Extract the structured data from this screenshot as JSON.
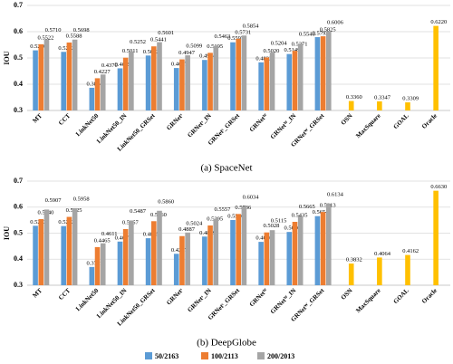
{
  "chart_data": [
    {
      "type": "bar",
      "subtitle": "(a) SpaceNet",
      "y_label": "IOU",
      "categories": [
        "MT",
        "CCT",
        "LinkNet50",
        "LinkNet50_IN",
        "LinkNet50_GRSet",
        "GRNetˢ",
        "GRNetˢ_IN",
        "GRNetˢ_GRSet",
        "GRNetᵂ",
        "GRNetᵂ_IN",
        "GRNetᵂ_GRSet",
        "OSN",
        "MaxSquare",
        "GOAL",
        "Oracle"
      ],
      "ylim": [
        0.3,
        0.7
      ],
      "yticks": [
        0.3,
        0.4,
        0.5,
        0.6,
        0.7
      ],
      "grid": true,
      "series": [
        {
          "name": "50/2163",
          "color": "#5b9bd5",
          "values": [
            0.529,
            0.5232,
            0.3864,
            0.4605,
            0.5092,
            0.4617,
            0.4924,
            0.5597,
            0.4832,
            0.5149,
            0.5792,
            null,
            null,
            null,
            null
          ],
          "value_labels": [
            "0.5290",
            "0.5232",
            "0.3864",
            "0.4605",
            "0.5092",
            "0.4617",
            "0.4924",
            "0.5597",
            "0.4832",
            "0.5149",
            "0.5792",
            null,
            null,
            null,
            null
          ]
        },
        {
          "name": "100/2113",
          "color": "#ed7d31",
          "values": [
            0.5522,
            0.5588,
            0.4227,
            0.5011,
            0.5441,
            0.4947,
            0.5195,
            0.5731,
            0.502,
            0.5271,
            0.5825,
            null,
            null,
            null,
            null
          ],
          "value_labels": [
            "0.5522",
            "0.5588",
            "0.4227",
            "0.5011",
            "0.5441",
            "0.4947",
            "0.5195",
            "0.5731",
            "0.5020",
            "0.5271",
            "0.5825",
            null,
            null,
            null,
            null
          ]
        },
        {
          "name": "200/2013",
          "color": "#a5a5a5",
          "values": [
            0.571,
            0.5698,
            0.437,
            0.5252,
            0.5601,
            0.5099,
            0.5463,
            0.5854,
            0.5204,
            0.5546,
            0.6006,
            null,
            null,
            null,
            null
          ],
          "value_labels": [
            "0.5710",
            "0.5698",
            "0.4370",
            "0.5252",
            "0.5601",
            "0.5099",
            "0.5463",
            "0.5854",
            "0.5204",
            "0.5546",
            "0.6006",
            null,
            null,
            null,
            null
          ]
        },
        {
          "color": "#ffc000",
          "values": [
            null,
            null,
            null,
            null,
            null,
            null,
            null,
            null,
            null,
            null,
            null,
            0.336,
            0.3347,
            0.3309,
            0.622
          ],
          "value_labels": [
            null,
            null,
            null,
            null,
            null,
            null,
            null,
            null,
            null,
            null,
            null,
            "0.3360",
            "0.3347",
            "0.3309",
            "0.6220"
          ]
        }
      ]
    },
    {
      "type": "bar",
      "subtitle": "(b) DeepGlobe",
      "y_label": "IOU",
      "categories": [
        "MT",
        "CCT",
        "LinkNet50",
        "LinkNet50_IN",
        "LinkNet50_GRSet",
        "GRNetˢ",
        "GRNetˢ_IN",
        "GRNetˢ_GRSet",
        "GRNetᵂ",
        "GRNetᵂ_IN",
        "GRNetᵂ_GRSet",
        "OSN",
        "MaxSquare",
        "GOAL",
        "Oracle"
      ],
      "ylim": [
        0.3,
        0.7
      ],
      "yticks": [
        0.3,
        0.4,
        0.5,
        0.6,
        0.7
      ],
      "grid": true,
      "series": [
        {
          "color": "#5b9bd5",
          "values": [
            0.5283,
            0.5272,
            0.3701,
            0.4677,
            0.4805,
            0.4207,
            0.4869,
            0.5506,
            0.4666,
            0.5046,
            0.5654,
            null,
            null,
            null,
            null
          ],
          "value_labels": [
            "0.5283",
            "0.5272",
            "0.3701",
            "0.4677",
            "0.4805",
            "0.4207",
            "0.4869",
            "0.5506",
            "0.4666",
            "0.5046",
            "0.5654",
            null,
            null,
            null,
            null
          ]
        },
        {
          "color": "#ed7d31",
          "values": [
            0.554,
            0.5625,
            0.4465,
            0.5157,
            0.546,
            0.4887,
            0.5295,
            0.5736,
            0.5028,
            0.5435,
            0.5813,
            null,
            null,
            null,
            null
          ],
          "value_labels": [
            "0.5540",
            "0.5625",
            "0.4465",
            "0.5157",
            "0.5460",
            "0.4887",
            "0.5295",
            "0.5736",
            "0.5028",
            "0.5435",
            "0.5813",
            null,
            null,
            null,
            null
          ]
        },
        {
          "color": "#a5a5a5",
          "values": [
            0.5907,
            0.5958,
            0.4611,
            0.5487,
            0.586,
            0.5024,
            0.5557,
            0.6034,
            0.5115,
            0.5665,
            0.6134,
            null,
            null,
            null,
            null
          ],
          "value_labels": [
            "0.5907",
            "0.5958",
            "0.4611",
            "0.5487",
            "0.5860",
            "0.5024",
            "0.5557",
            "0.6034",
            "0.5115",
            "0.5665",
            "0.6134",
            null,
            null,
            null,
            null
          ]
        },
        {
          "color": "#ffc000",
          "values": [
            null,
            null,
            null,
            null,
            null,
            null,
            null,
            null,
            null,
            null,
            null,
            0.3832,
            0.4064,
            0.4162,
            0.663
          ],
          "value_labels": [
            null,
            null,
            null,
            null,
            null,
            null,
            null,
            null,
            null,
            null,
            null,
            "0.3832",
            "0.4064",
            "0.4162",
            "0.6630"
          ]
        }
      ]
    }
  ]
}
